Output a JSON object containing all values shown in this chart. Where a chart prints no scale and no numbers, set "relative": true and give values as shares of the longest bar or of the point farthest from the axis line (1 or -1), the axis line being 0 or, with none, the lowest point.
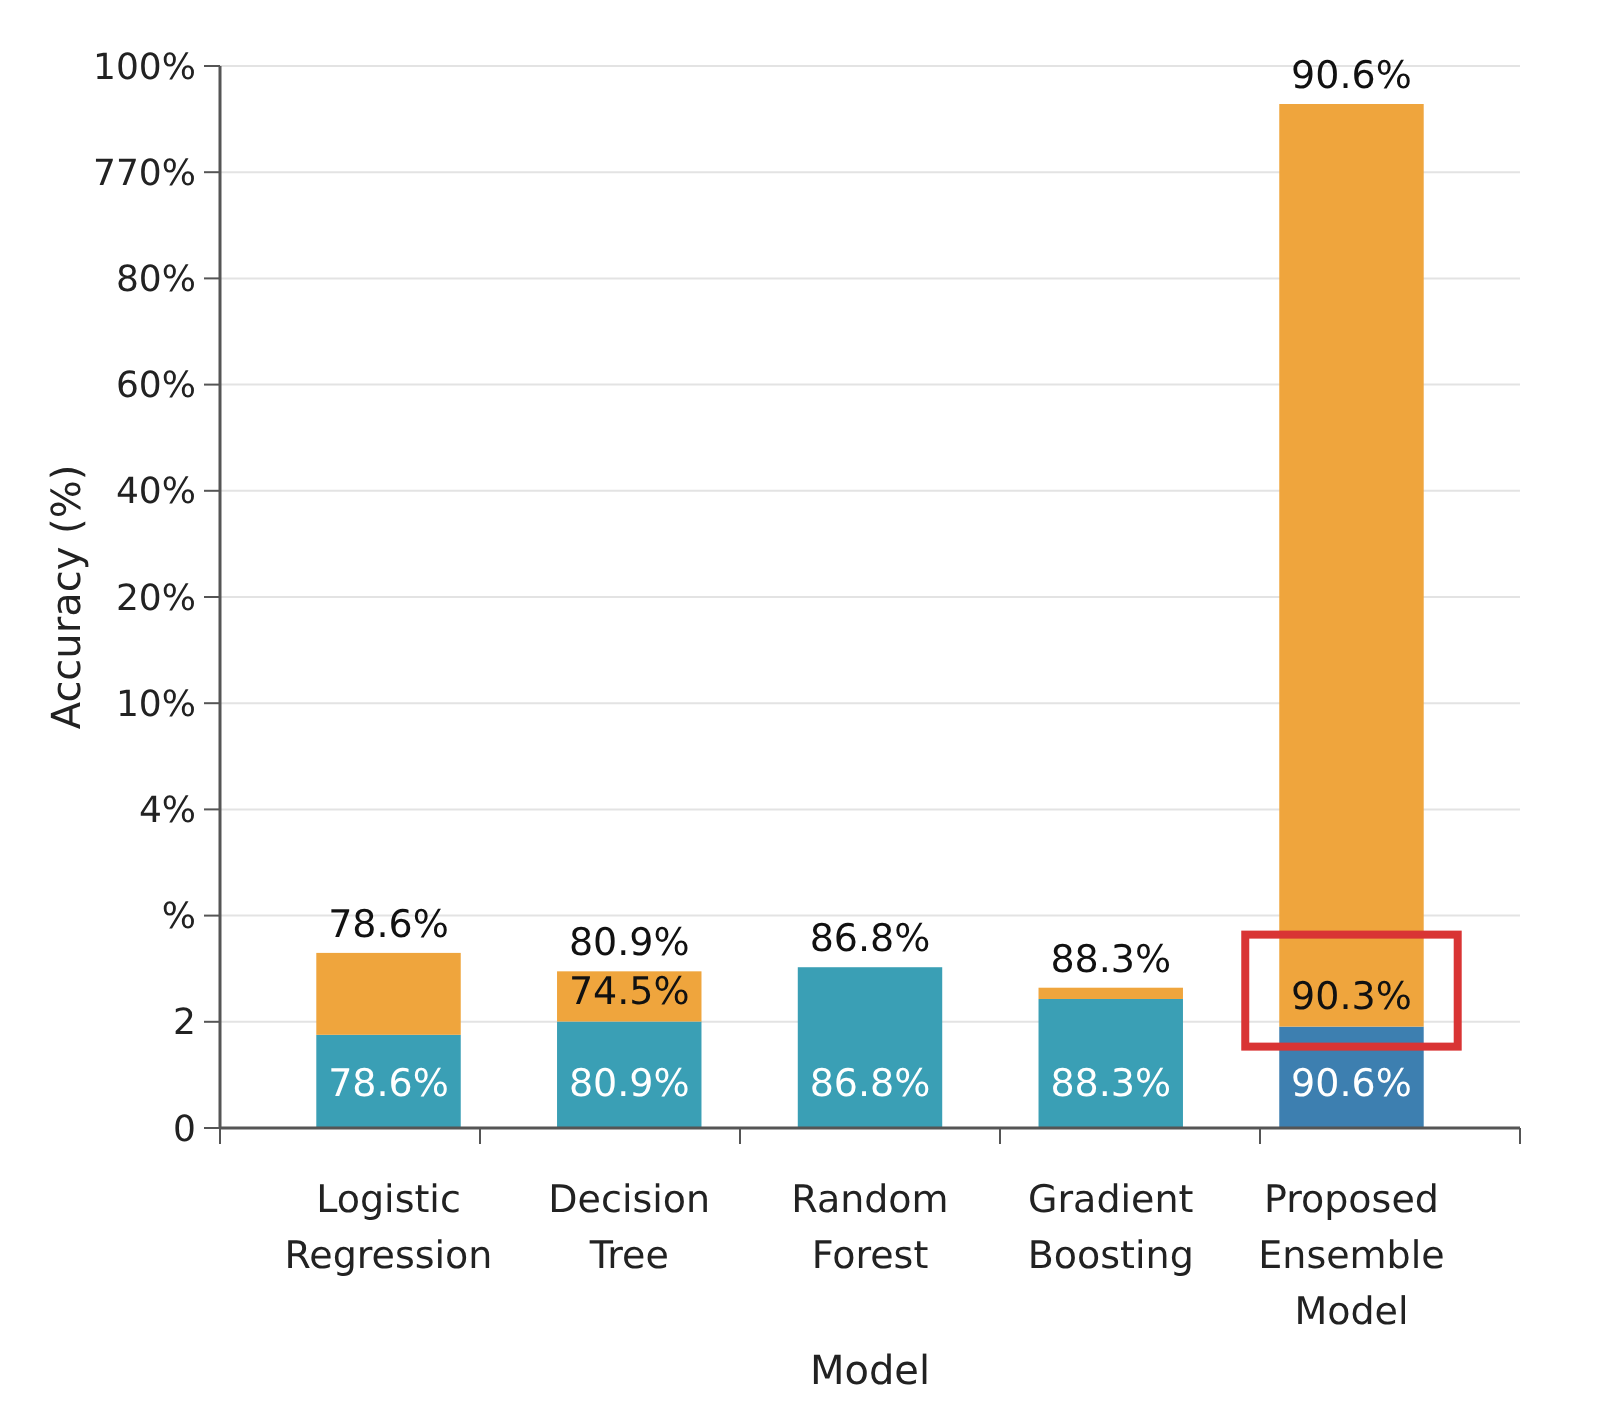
{
  "chart_data": {
    "type": "bar",
    "stacked": true,
    "relative": true,
    "xlabel": "Model",
    "ylabel": "Accuracy (%)",
    "categories": [
      "Logistic Regression",
      "Decision Tree",
      "Random Forest",
      "Gradient Boosting",
      "Proposed Ensemble Model"
    ],
    "series": [
      {
        "colors": [
          "#3a9fb5",
          "#3a9fb5",
          "#3a9fb5",
          "#3a9fb5",
          "#3d7fb0"
        ],
        "values": [
          0.091,
          0.104,
          0.157,
          0.126,
          0.099
        ]
      },
      {
        "color": "#efa53d",
        "values": [
          0.08,
          0.049,
          0,
          0.011,
          0.901
        ]
      }
    ],
    "annotations": [
      {
        "text": "78.6%",
        "x": "Logistic Regression",
        "y": 0
      },
      {
        "text": "80.9%",
        "x": "Decision Tree",
        "y": 0
      },
      {
        "text": "86.8%",
        "x": "Random Forest",
        "y": 0
      },
      {
        "text": "88.3%",
        "x": "Gradient Boosting",
        "y": 0
      },
      {
        "text": "90.6%",
        "x": "Proposed Ensemble Model",
        "y": 0
      },
      {
        "text": "74.5%",
        "x": "Decision Tree",
        "y": 0.104
      },
      {
        "text": "90.3%",
        "x": "Proposed Ensemble Model",
        "y": 0.099
      },
      {
        "text": "78.6%",
        "x": "Logistic Regression",
        "y": 0.171
      },
      {
        "text": "80.9%",
        "x": "Decision Tree",
        "y": 0.153
      },
      {
        "text": "86.8%",
        "x": "Random Forest",
        "y": 0.157
      },
      {
        "text": "88.3%",
        "x": "Gradient Boosting",
        "y": 0.137
      },
      {
        "text": "90.6%",
        "x": "Proposed Ensemble Model",
        "y": 1
      },
      "0",
      "2",
      "%",
      "4%",
      "10%",
      "20%",
      "40%",
      "60%",
      "80%",
      "770%",
      "100%"
    ],
    "grid": "y"
  }
}
